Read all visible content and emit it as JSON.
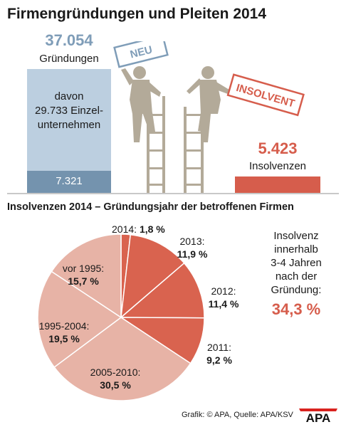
{
  "title": "Firmengründungen und Pleiten 2014",
  "founded": {
    "value": "37.054",
    "label": "Gründungen",
    "note_lines": [
      "davon",
      "29.733 Einzel-",
      "unternehmen"
    ],
    "sub_value": "7.321"
  },
  "insolvent": {
    "value": "5.423",
    "label": "Insolvenzen"
  },
  "signs": {
    "new": "NEU",
    "insolvent": "INSOLVENT"
  },
  "pie_title": "Insolvenzen 2014 – Gründungsjahr der betroffenen Firmen",
  "side_note": {
    "lines": [
      "Insolvenz",
      "innerhalb",
      "3-4 Jahren",
      "nach der",
      "Gründung:"
    ],
    "value": "34,3 %"
  },
  "source": "Grafik: © APA, Quelle: APA/KSV",
  "logo": "APA",
  "colors": {
    "recent": "#d9634f",
    "older": "#e7b3a6",
    "blue_light": "#bccfe0",
    "blue_dark": "#7493ae",
    "red": "#d65d4c",
    "figure": "#b3aa99"
  },
  "chart_data": [
    {
      "type": "bar",
      "categories": [
        "Gründungen",
        "Insolvenzen"
      ],
      "values": [
        37054,
        5423
      ],
      "sub_values": [
        {
          "category": "Gründungen",
          "label": "davon 29.733 Einzelunternehmen",
          "value": 29733
        },
        {
          "category": "Gründungen",
          "value": 7321
        }
      ]
    },
    {
      "type": "pie",
      "title": "Insolvenzen 2014 – Gründungsjahr der betroffenen Firmen",
      "slices": [
        {
          "label": "2014:",
          "value": 1.8,
          "display": "1,8 %"
        },
        {
          "label": "2013:",
          "value": 11.9,
          "display": "11,9 %"
        },
        {
          "label": "2012:",
          "value": 11.4,
          "display": "11,4 %"
        },
        {
          "label": "2011:",
          "value": 9.2,
          "display": "9,2 %"
        },
        {
          "label": "2005-2010:",
          "value": 30.5,
          "display": "30,5 %"
        },
        {
          "label": "1995-2004:",
          "value": 19.5,
          "display": "19,5 %"
        },
        {
          "label": "vor 1995:",
          "value": 15.7,
          "display": "15,7 %"
        }
      ]
    }
  ]
}
